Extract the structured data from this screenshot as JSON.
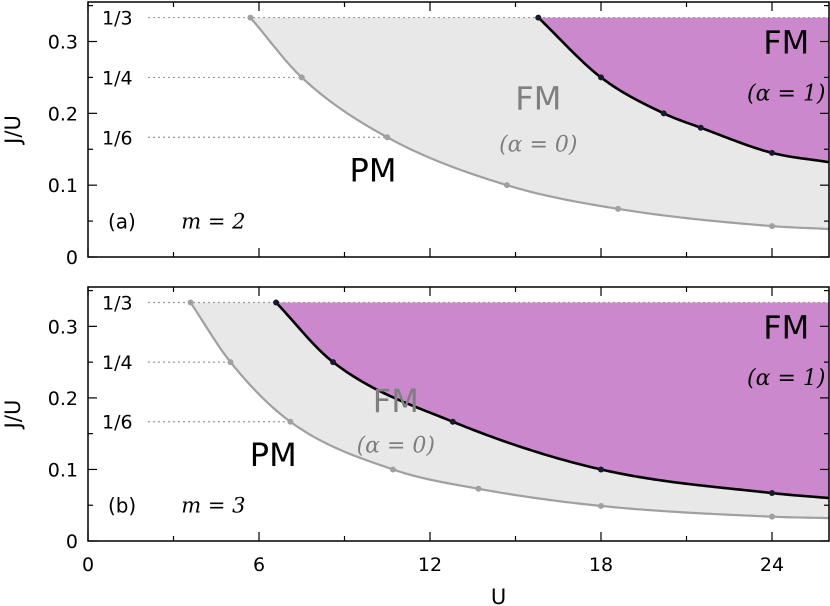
{
  "chart_data": [
    {
      "type": "area",
      "panel_label": "(a)",
      "m_label": "m = 2",
      "xlabel": "",
      "ylabel": "J/U",
      "xlim": [
        0,
        26
      ],
      "ylim": [
        0,
        0.355
      ],
      "x_ticks": [
        "0",
        "6",
        "12",
        "18",
        "24"
      ],
      "y_ticks": [
        "0",
        "0.1",
        "0.2",
        "0.3"
      ],
      "fraction_labels": [
        {
          "text": "1/3",
          "value": 0.3333
        },
        {
          "text": "1/4",
          "value": 0.25
        },
        {
          "text": "1/6",
          "value": 0.1667
        }
      ],
      "series": [
        {
          "boundary": "FM (α=0)",
          "x": [
            5.7,
            7.5,
            10.5,
            14.7,
            18.6,
            24.0,
            26.0
          ],
          "y": [
            0.3333,
            0.25,
            0.1667,
            0.1,
            0.067,
            0.043,
            0.039
          ],
          "markers_x": [
            5.7,
            7.5,
            10.5,
            14.7,
            18.6,
            24.0
          ]
        },
        {
          "boundary": "FM (α=1)",
          "x": [
            15.8,
            18.0,
            20.2,
            21.5,
            24.0,
            26.0
          ],
          "y": [
            0.3333,
            0.25,
            0.2,
            0.18,
            0.145,
            0.132
          ],
          "markers_x": [
            15.8,
            18.0,
            20.2,
            21.5,
            24.0
          ]
        }
      ],
      "regions": [
        {
          "id": "pm",
          "label": "PM",
          "sub": ""
        },
        {
          "id": "fm0",
          "label": "FM",
          "sub": "(α = 0)"
        },
        {
          "id": "fm1",
          "label": "FM",
          "sub": "(α = 1)"
        }
      ],
      "colors": {
        "fm0_fill": "#e8e8e8",
        "fm1_fill": "#cc88cc",
        "fm0_line": "#a0a0a0",
        "fm1_line": "#000000",
        "fm0_text": "#7f7f7f"
      }
    },
    {
      "type": "area",
      "panel_label": "(b)",
      "m_label": "m = 3",
      "xlabel": "U",
      "ylabel": "J/U",
      "xlim": [
        0,
        26
      ],
      "ylim": [
        0,
        0.355
      ],
      "x_ticks": [
        "0",
        "6",
        "12",
        "18",
        "24"
      ],
      "y_ticks": [
        "0",
        "0.1",
        "0.2",
        "0.3"
      ],
      "fraction_labels": [
        {
          "text": "1/3",
          "value": 0.3333
        },
        {
          "text": "1/4",
          "value": 0.25
        },
        {
          "text": "1/6",
          "value": 0.1667
        }
      ],
      "series": [
        {
          "boundary": "FM (α=0)",
          "x": [
            3.6,
            5.0,
            7.1,
            10.7,
            13.7,
            18.0,
            24.0,
            26.0
          ],
          "y": [
            0.3333,
            0.25,
            0.1667,
            0.1,
            0.073,
            0.049,
            0.034,
            0.032
          ],
          "markers_x": [
            3.6,
            5.0,
            7.1,
            10.7,
            13.7,
            18.0,
            24.0
          ]
        },
        {
          "boundary": "FM (α=1)",
          "x": [
            6.6,
            8.6,
            12.8,
            18.0,
            24.0,
            26.0
          ],
          "y": [
            0.3333,
            0.25,
            0.1667,
            0.1,
            0.067,
            0.06
          ],
          "markers_x": [
            6.6,
            8.6,
            12.8,
            18.0,
            24.0
          ]
        }
      ],
      "regions": [
        {
          "id": "pm",
          "label": "PM",
          "sub": ""
        },
        {
          "id": "fm0",
          "label": "FM",
          "sub": "(α = 0)"
        },
        {
          "id": "fm1",
          "label": "FM",
          "sub": "(α = 1)"
        }
      ],
      "colors": {
        "fm0_fill": "#e8e8e8",
        "fm1_fill": "#cc88cc",
        "fm0_line": "#a0a0a0",
        "fm1_line": "#000000",
        "fm0_text": "#7f7f7f"
      }
    }
  ]
}
